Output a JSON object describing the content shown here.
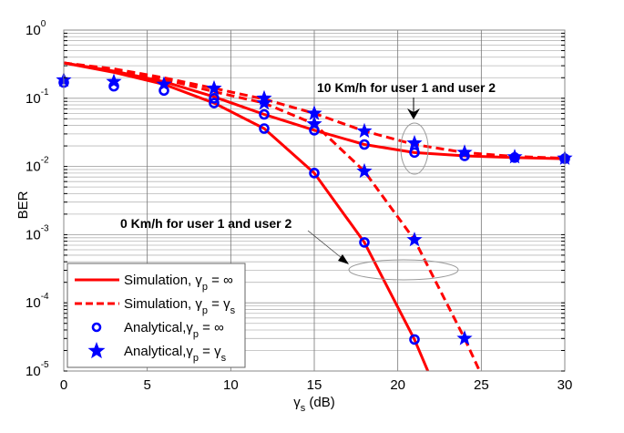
{
  "chart_data": {
    "type": "line",
    "title": "",
    "xlabel": "γs (dB)",
    "xlabel_main": "γ",
    "xlabel_sub": "s",
    "xlabel_unit": " (dB)",
    "ylabel": "BER",
    "xlim": [
      0,
      30
    ],
    "ylim": [
      1e-05,
      1
    ],
    "yscale": "log",
    "grid": true,
    "x_ticks": [
      0,
      5,
      10,
      15,
      20,
      25,
      30
    ],
    "y_ticks": [
      {
        "base": "10",
        "exp": "0",
        "value": 1
      },
      {
        "base": "10",
        "exp": "-1",
        "value": 0.1
      },
      {
        "base": "10",
        "exp": "-2",
        "value": 0.01
      },
      {
        "base": "10",
        "exp": "-3",
        "value": 0.001
      },
      {
        "base": "10",
        "exp": "-4",
        "value": 0.0001
      },
      {
        "base": "10",
        "exp": "-5",
        "value": 1e-05
      }
    ],
    "legend_position": "lower left",
    "series": [
      {
        "name": "Simulation, γp = ∞ (10 Km/h)",
        "style": "solid",
        "color": "#ff0000",
        "kind": "line",
        "x": [
          0,
          3,
          6,
          9,
          12,
          15,
          18,
          21,
          24,
          27,
          30
        ],
        "y": [
          0.33,
          0.25,
          0.175,
          0.105,
          0.058,
          0.034,
          0.021,
          0.016,
          0.0143,
          0.0135,
          0.013
        ]
      },
      {
        "name": "Simulation, γp = γs (10 Km/h)",
        "style": "dashed",
        "color": "#ff0000",
        "kind": "line",
        "x": [
          0,
          3,
          6,
          9,
          12,
          15,
          18,
          21,
          24,
          27,
          30
        ],
        "y": [
          0.33,
          0.27,
          0.2,
          0.14,
          0.097,
          0.06,
          0.033,
          0.021,
          0.016,
          0.014,
          0.0132
        ]
      },
      {
        "name": "Simulation, γp = ∞ (0 Km/h)",
        "style": "solid",
        "color": "#ff0000",
        "kind": "line",
        "x": [
          0,
          3,
          6,
          9,
          12,
          15,
          18,
          21,
          21.8
        ],
        "y": [
          0.33,
          0.24,
          0.16,
          0.085,
          0.036,
          0.008,
          0.00077,
          2.9e-05,
          1e-05
        ]
      },
      {
        "name": "Simulation, γp = γs (0 Km/h)",
        "style": "dashed",
        "color": "#ff0000",
        "kind": "line",
        "x": [
          0,
          3,
          6,
          9,
          12,
          15,
          18,
          21,
          24,
          24.9
        ],
        "y": [
          0.33,
          0.26,
          0.19,
          0.125,
          0.085,
          0.042,
          0.0085,
          0.00084,
          3e-05,
          1e-05
        ]
      },
      {
        "name": "Analytical, γp = ∞",
        "style": "marker",
        "marker": "circle",
        "color": "#0000ff",
        "kind": "scatter",
        "points": [
          [
            0,
            0.17
          ],
          [
            3,
            0.15
          ],
          [
            6,
            0.13
          ],
          [
            9,
            0.1
          ],
          [
            9,
            0.085
          ],
          [
            12,
            0.058
          ],
          [
            12,
            0.036
          ],
          [
            15,
            0.034
          ],
          [
            15,
            0.008
          ],
          [
            18,
            0.021
          ],
          [
            18,
            0.00077
          ],
          [
            21,
            0.016
          ],
          [
            21,
            2.9e-05
          ],
          [
            24,
            0.0143
          ],
          [
            27,
            0.0135
          ],
          [
            30,
            0.013
          ]
        ]
      },
      {
        "name": "Analytical, γp = γs",
        "style": "marker",
        "marker": "star",
        "color": "#0000ff",
        "kind": "scatter",
        "points": [
          [
            0,
            0.185
          ],
          [
            3,
            0.175
          ],
          [
            6,
            0.16
          ],
          [
            9,
            0.14
          ],
          [
            12,
            0.1
          ],
          [
            12,
            0.085
          ],
          [
            15,
            0.06
          ],
          [
            15,
            0.042
          ],
          [
            18,
            0.033
          ],
          [
            18,
            0.0085
          ],
          [
            21,
            0.022
          ],
          [
            21,
            0.00084
          ],
          [
            24,
            0.016
          ],
          [
            24,
            3e-05
          ],
          [
            27,
            0.0138
          ],
          [
            30,
            0.0132
          ]
        ]
      }
    ],
    "legend": [
      {
        "label": "Simulation, ",
        "sym": "γ",
        "sub": "p",
        "eq": " = ",
        "rhs": "∞",
        "rhs_sub": "",
        "kind": "solid"
      },
      {
        "label": "Simulation, ",
        "sym": "γ",
        "sub": "p",
        "eq": " = ",
        "rhs": "γ",
        "rhs_sub": "s",
        "kind": "dashed"
      },
      {
        "label": "Analytical,",
        "sym": "γ",
        "sub": "p",
        "eq": " = ",
        "rhs": "∞",
        "rhs_sub": "",
        "kind": "circle"
      },
      {
        "label": "Analytical,",
        "sym": "γ",
        "sub": "p",
        "eq": " = ",
        "rhs": "γ",
        "rhs_sub": "s",
        "kind": "star"
      }
    ],
    "annotations": [
      {
        "text": "10 Km/h for user 1 and user 2",
        "target_x": 21,
        "target_y": 0.019
      },
      {
        "text": "0 Km/h for user 1 and user 2",
        "target_x": 20,
        "target_y": 0.00028
      }
    ]
  }
}
